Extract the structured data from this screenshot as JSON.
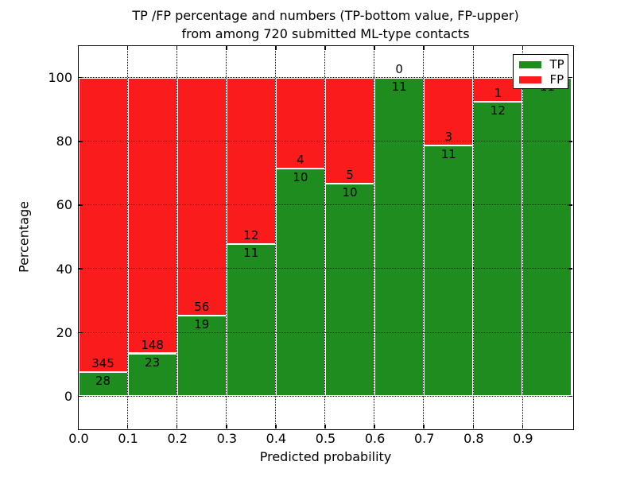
{
  "title": {
    "line1": "TP /FP percentage and numbers (TP-bottom value, FP-upper)",
    "line2": "from among 720 submitted ML-type contacts"
  },
  "axes": {
    "x_label": "Predicted probability",
    "y_label": "Percentage",
    "x_tick_labels": [
      "0.0",
      "0.1",
      "0.2",
      "0.3",
      "0.4",
      "0.5",
      "0.6",
      "0.7",
      "0.8",
      "0.9"
    ],
    "x_tick_values": [
      0.0,
      0.1,
      0.2,
      0.3,
      0.4,
      0.5,
      0.6,
      0.7,
      0.8,
      0.9
    ],
    "y_tick_labels": [
      "0",
      "20",
      "40",
      "60",
      "80",
      "100"
    ],
    "y_tick_values": [
      0,
      20,
      40,
      60,
      80,
      100
    ],
    "x_range": [
      0.0,
      1.0
    ],
    "y_range": [
      -10,
      110
    ]
  },
  "legend": {
    "position": "upper right",
    "items": [
      {
        "label": "TP",
        "color": "#1e8c1e"
      },
      {
        "label": "FP",
        "color": "#fa1c1c"
      }
    ]
  },
  "colors": {
    "tp": "#1e8c1e",
    "fp": "#fa1c1c",
    "grid": "#000000",
    "bar_edge": "#ffffff",
    "text": "#000000",
    "background": "#ffffff"
  },
  "chart_data": {
    "type": "bar",
    "stacking": "percentage",
    "title": "TP /FP percentage and numbers (TP-bottom value, FP-upper) from among 720 submitted ML-type contacts",
    "xlabel": "Predicted probability",
    "ylabel": "Percentage",
    "total_contacts": 720,
    "bin_width": 0.1,
    "categories": [
      "0.0-0.1",
      "0.1-0.2",
      "0.2-0.3",
      "0.3-0.4",
      "0.4-0.5",
      "0.5-0.6",
      "0.6-0.7",
      "0.7-0.8",
      "0.8-0.9",
      "0.9-1.0"
    ],
    "series": [
      {
        "name": "TP",
        "counts": [
          28,
          23,
          19,
          11,
          10,
          10,
          11,
          11,
          12,
          11
        ],
        "percent": [
          7.5,
          13.5,
          25.3,
          47.8,
          71.4,
          66.7,
          100.0,
          78.6,
          92.3,
          100.0
        ]
      },
      {
        "name": "FP",
        "counts": [
          345,
          148,
          56,
          12,
          4,
          5,
          0,
          3,
          1,
          0
        ],
        "percent": [
          92.5,
          86.5,
          74.7,
          52.2,
          28.6,
          33.3,
          0.0,
          21.4,
          7.7,
          0.0
        ]
      }
    ],
    "xlim": [
      0,
      1
    ],
    "ylim": [
      -10,
      110
    ],
    "grid": "dotted",
    "legend_position": "upper right"
  }
}
